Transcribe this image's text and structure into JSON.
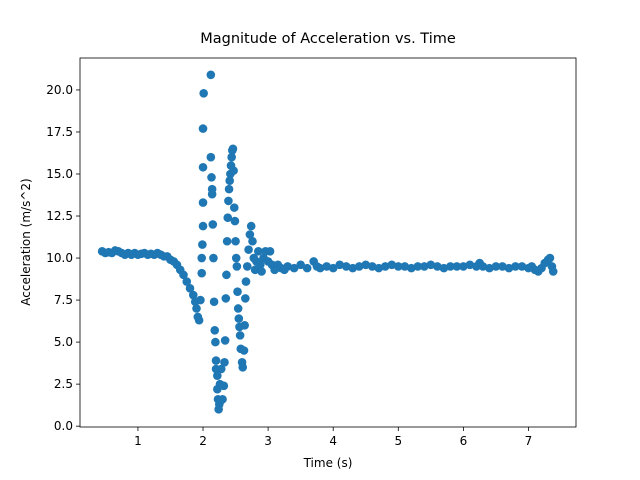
{
  "chart_data": {
    "type": "scatter",
    "title": "Magnitude of Acceleration vs. Time",
    "xlabel": "Time (s)",
    "ylabel": "Acceleration (m/s^2)",
    "color": "#1f77b4",
    "xlim": [
      0.11,
      7.73
    ],
    "ylim": [
      -0.05,
      21.9
    ],
    "xticks": [
      1,
      2,
      3,
      4,
      5,
      6,
      7
    ],
    "yticks": [
      {
        "value": 0,
        "label": "0.0"
      },
      2.5,
      {
        "value": 5,
        "label": "5.0"
      },
      7.5,
      {
        "value": 10,
        "label": "10.0"
      },
      12.5,
      {
        "value": 15,
        "label": "15.0"
      },
      17.5,
      {
        "value": 20,
        "label": "20.0"
      }
    ],
    "grid": false,
    "x": [
      0.45,
      0.5,
      0.55,
      0.6,
      0.65,
      0.7,
      0.75,
      0.8,
      0.85,
      0.9,
      0.95,
      1.0,
      1.05,
      1.1,
      1.15,
      1.2,
      1.25,
      1.3,
      1.35,
      1.4,
      1.45,
      1.5,
      1.55,
      1.6,
      1.65,
      1.7,
      1.75,
      1.8,
      1.85,
      1.88,
      1.9,
      1.92,
      1.94,
      1.96,
      1.98,
      1.98,
      1.99,
      2.0,
      2.0,
      2.0,
      2.0,
      2.01,
      2.12,
      2.12,
      2.13,
      2.14,
      2.14,
      2.15,
      2.16,
      2.17,
      2.18,
      2.19,
      2.2,
      2.2,
      2.22,
      2.22,
      2.23,
      2.24,
      2.25,
      2.26,
      2.27,
      2.28,
      2.3,
      2.32,
      2.33,
      2.34,
      2.35,
      2.36,
      2.37,
      2.38,
      2.39,
      2.4,
      2.41,
      2.42,
      2.43,
      2.44,
      2.45,
      2.46,
      2.47,
      2.48,
      2.49,
      2.5,
      2.51,
      2.52,
      2.53,
      2.54,
      2.55,
      2.56,
      2.57,
      2.58,
      2.6,
      2.61,
      2.63,
      2.64,
      2.65,
      2.66,
      2.68,
      2.7,
      2.72,
      2.74,
      2.76,
      2.78,
      2.8,
      2.82,
      2.85,
      2.88,
      2.9,
      2.93,
      2.96,
      3.0,
      3.03,
      3.06,
      3.1,
      3.15,
      3.2,
      3.25,
      3.3,
      3.4,
      3.5,
      3.6,
      3.7,
      3.75,
      3.8,
      3.9,
      4.0,
      4.1,
      4.2,
      4.3,
      4.4,
      4.5,
      4.6,
      4.7,
      4.8,
      4.9,
      5.0,
      5.1,
      5.2,
      5.3,
      5.4,
      5.5,
      5.6,
      5.7,
      5.8,
      5.9,
      6.0,
      6.1,
      6.2,
      6.25,
      6.3,
      6.4,
      6.5,
      6.6,
      6.7,
      6.8,
      6.9,
      7.0,
      7.05,
      7.1,
      7.15,
      7.2,
      7.25,
      7.3,
      7.33,
      7.36,
      7.38
    ],
    "values": [
      10.4,
      10.3,
      10.35,
      10.3,
      10.45,
      10.4,
      10.3,
      10.2,
      10.3,
      10.2,
      10.3,
      10.2,
      10.25,
      10.3,
      10.2,
      10.25,
      10.2,
      10.3,
      10.2,
      10.1,
      10.1,
      9.9,
      9.8,
      9.6,
      9.3,
      9.0,
      8.6,
      8.2,
      7.8,
      7.4,
      7.0,
      6.5,
      6.3,
      7.5,
      9.1,
      10.0,
      10.8,
      11.9,
      13.3,
      15.4,
      17.7,
      19.8,
      20.9,
      16.0,
      14.8,
      14.1,
      13.8,
      12.0,
      10.0,
      7.4,
      5.7,
      5.0,
      3.9,
      3.4,
      3.0,
      2.2,
      1.6,
      1.0,
      1.3,
      2.5,
      1.5,
      3.4,
      1.6,
      2.4,
      3.8,
      5.1,
      7.6,
      9.0,
      11.0,
      12.4,
      13.4,
      14.1,
      14.6,
      15.0,
      15.5,
      16.0,
      16.4,
      16.5,
      15.2,
      13.0,
      12.2,
      11.0,
      10.0,
      9.5,
      8.0,
      7.0,
      6.4,
      5.9,
      5.4,
      4.6,
      3.8,
      3.5,
      4.5,
      6.0,
      7.6,
      8.6,
      9.5,
      10.5,
      11.4,
      11.9,
      11.0,
      10.0,
      9.3,
      9.8,
      10.4,
      9.6,
      9.2,
      10.0,
      10.4,
      9.8,
      10.4,
      9.6,
      9.3,
      9.6,
      9.4,
      9.3,
      9.5,
      9.4,
      9.6,
      9.4,
      9.8,
      9.5,
      9.4,
      9.5,
      9.4,
      9.6,
      9.5,
      9.4,
      9.5,
      9.6,
      9.5,
      9.4,
      9.5,
      9.6,
      9.5,
      9.5,
      9.4,
      9.5,
      9.5,
      9.6,
      9.5,
      9.4,
      9.5,
      9.5,
      9.5,
      9.6,
      9.5,
      9.7,
      9.5,
      9.4,
      9.5,
      9.5,
      9.4,
      9.5,
      9.5,
      9.4,
      9.5,
      9.3,
      9.2,
      9.4,
      9.7,
      9.9,
      10.0,
      9.5,
      9.2
    ]
  }
}
